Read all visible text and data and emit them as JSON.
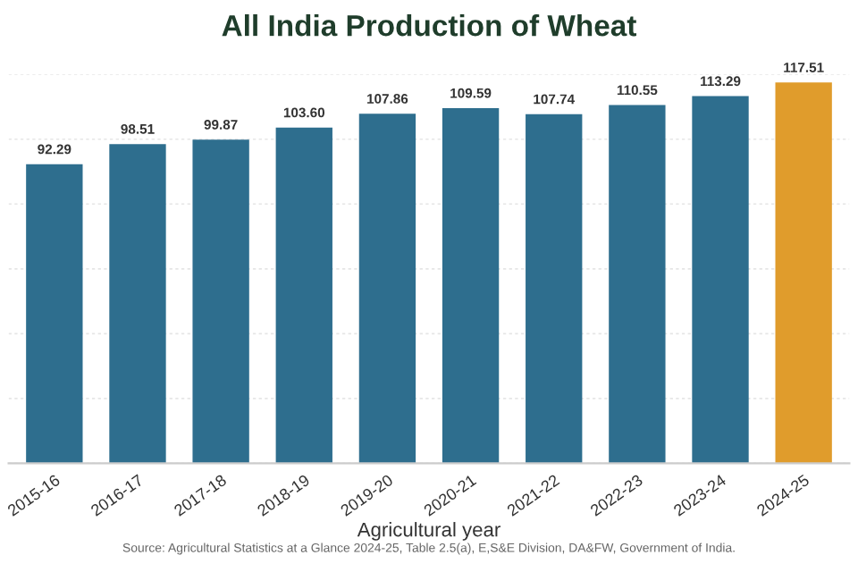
{
  "chart_data": {
    "type": "bar",
    "title": "All India Production of Wheat",
    "xlabel": "Agricultural year",
    "categories": [
      "2015-16",
      "2016-17",
      "2017-18",
      "2018-19",
      "2019-20",
      "2020-21",
      "2021-22",
      "2022-23",
      "2023-24",
      "2024-25"
    ],
    "values": [
      92.29,
      98.51,
      99.87,
      103.6,
      107.86,
      109.59,
      107.74,
      110.55,
      113.29,
      117.51
    ],
    "value_labels": [
      "92.29",
      "98.51",
      "99.87",
      "103.60",
      "107.86",
      "109.59",
      "107.74",
      "110.55",
      "113.29",
      "117.51"
    ],
    "colors": [
      "#2e6e8e",
      "#2e6e8e",
      "#2e6e8e",
      "#2e6e8e",
      "#2e6e8e",
      "#2e6e8e",
      "#2e6e8e",
      "#2e6e8e",
      "#2e6e8e",
      "#e09c2c"
    ],
    "ylim": [
      0,
      120
    ],
    "yticks": [
      {
        "value": 0,
        "label": null
      },
      {
        "value": 20,
        "label": null
      },
      {
        "value": 40,
        "label": null
      },
      {
        "value": 60,
        "label": null
      },
      {
        "value": 80,
        "label": null
      },
      {
        "value": 100,
        "label": null
      },
      {
        "value": 120,
        "label": null
      }
    ],
    "grid": "y",
    "tick_labels": "x",
    "annotations": [
      "Source: Agricultural Statistics at a Glance 2024-25, Table 2.5(a), E,S&E Division, DA&FW, Government of India."
    ]
  }
}
